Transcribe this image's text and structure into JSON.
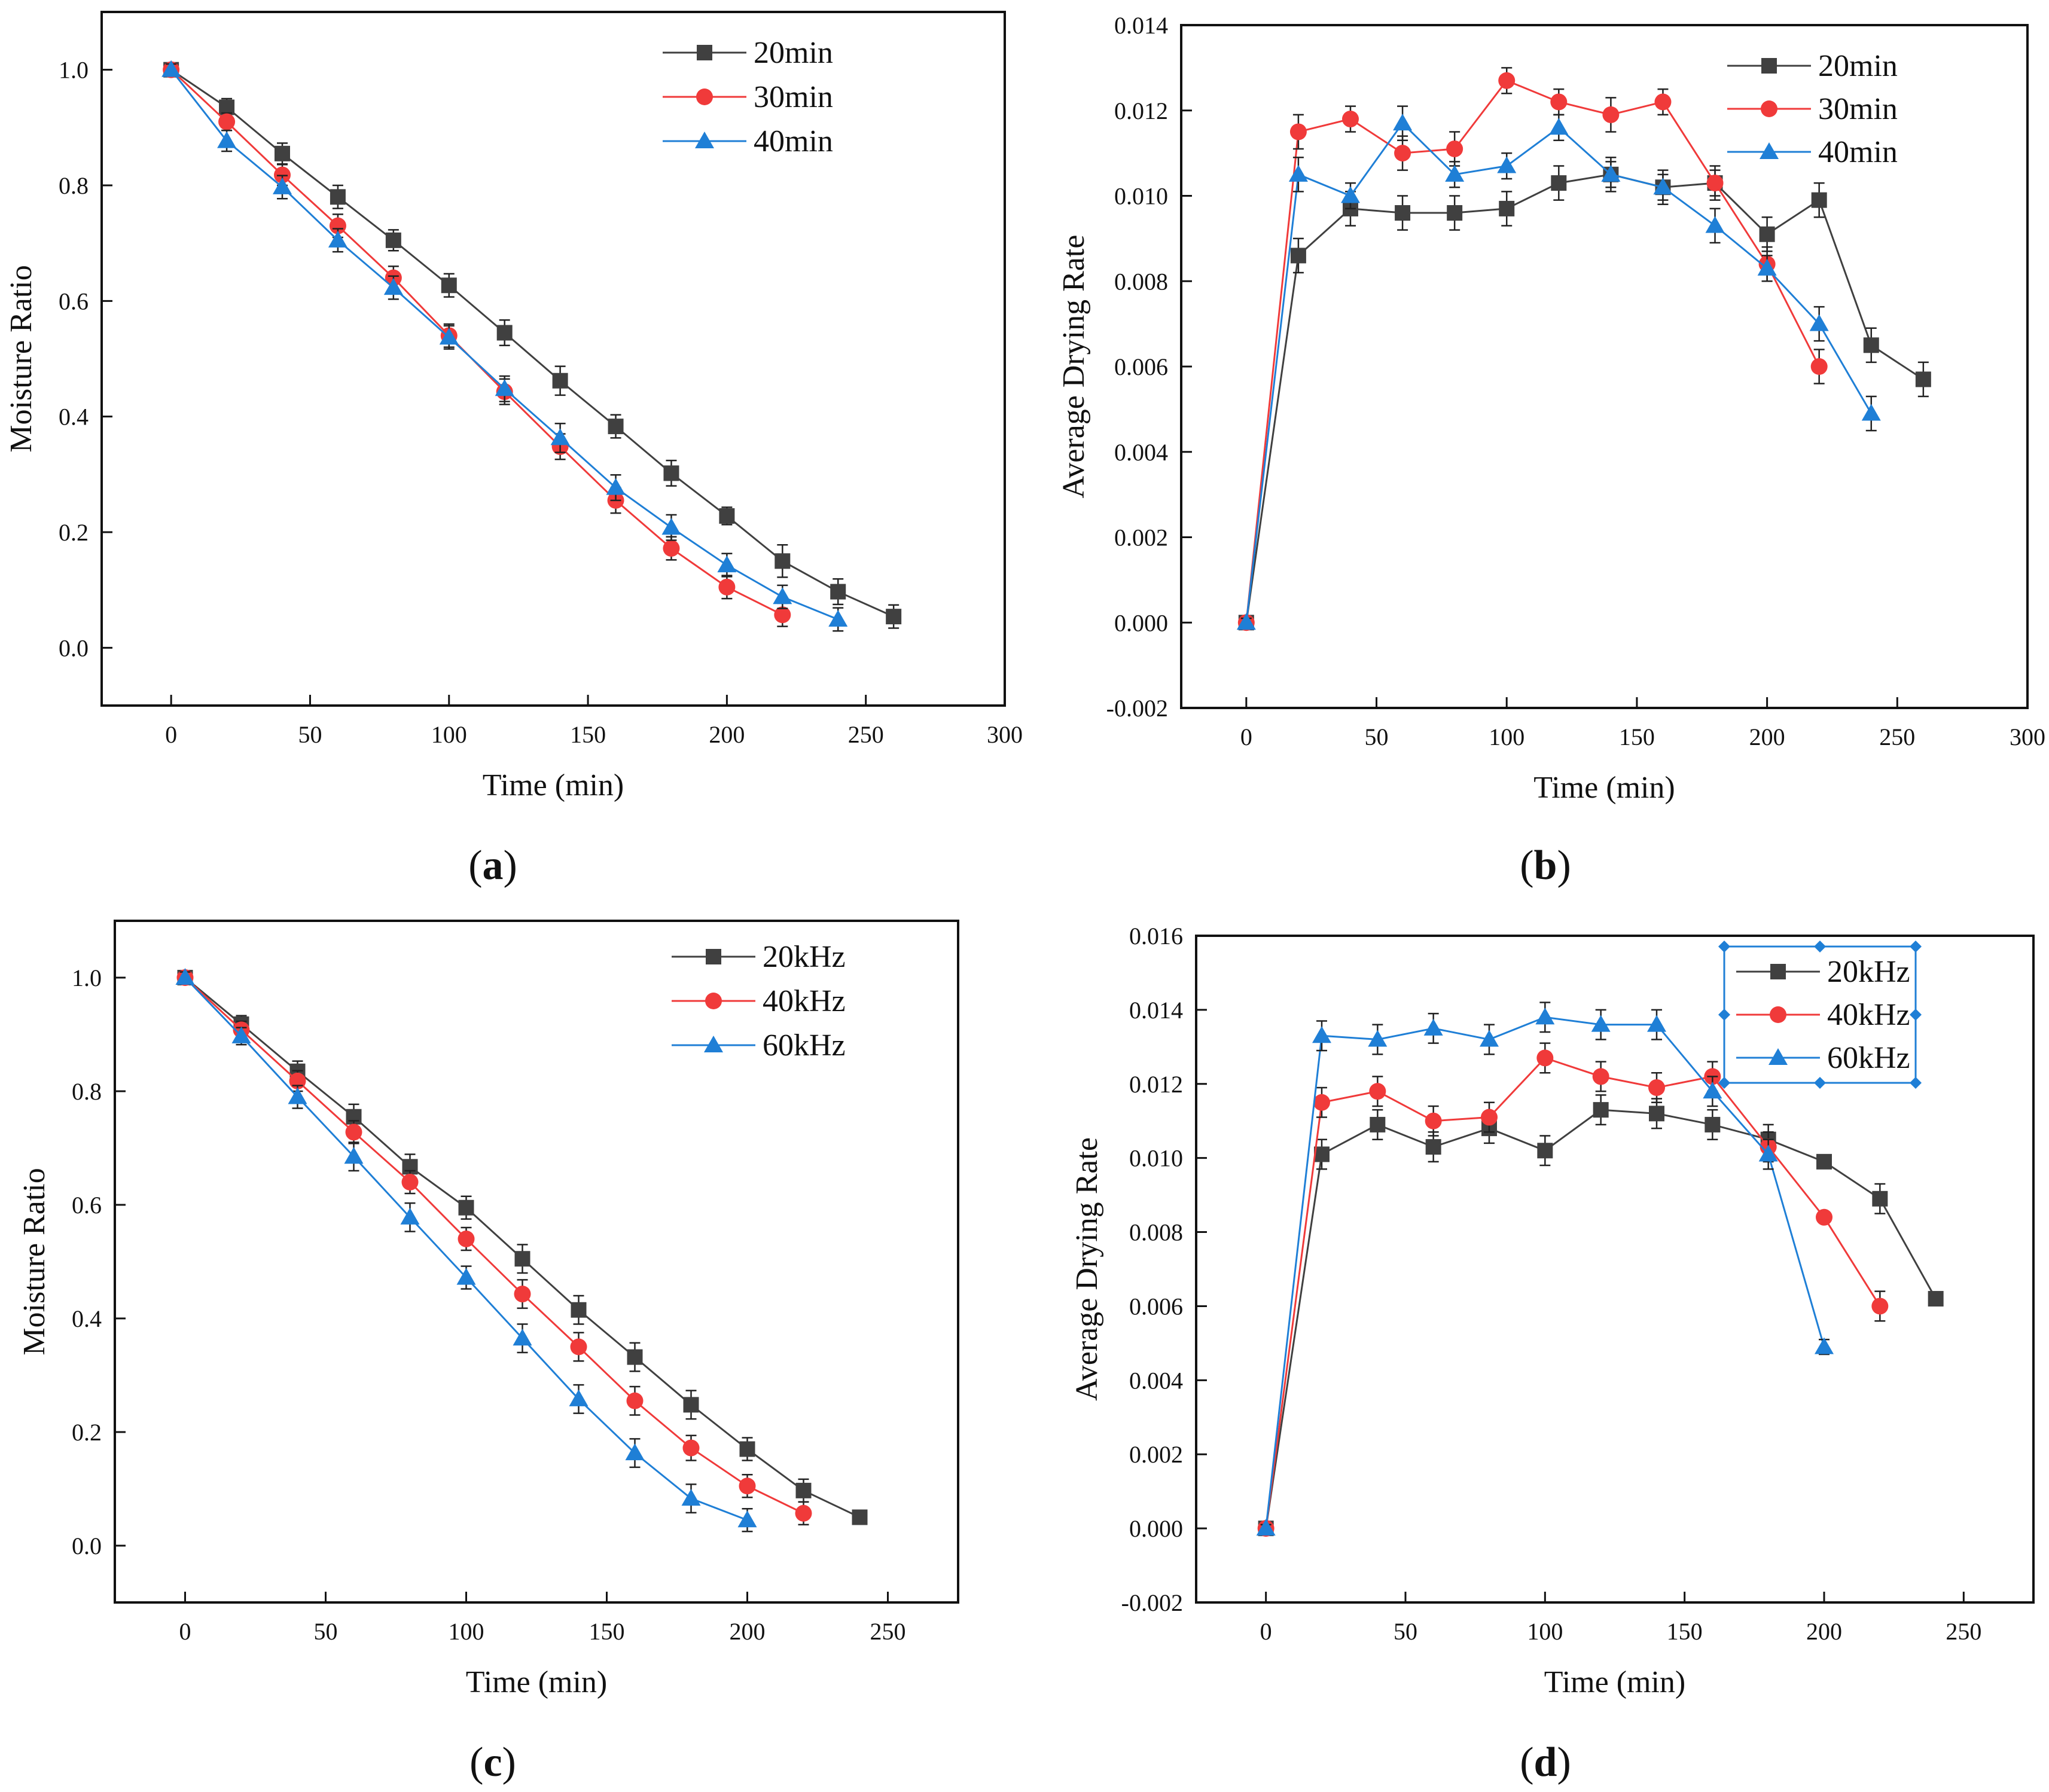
{
  "figure": {
    "panels": [
      {
        "id": "a",
        "label": "a"
      },
      {
        "id": "b",
        "label": "b"
      },
      {
        "id": "c",
        "label": "c"
      },
      {
        "id": "d",
        "label": "d"
      }
    ]
  },
  "colors": {
    "series1": "#404040",
    "series2": "#f03a3a",
    "series3": "#1f7fd6",
    "axis": "#111111"
  },
  "chart_data": [
    {
      "id": "a",
      "type": "line",
      "xlabel": "Time (min)",
      "ylabel": "Moisture Ratio",
      "xlim": [
        -25,
        300
      ],
      "ylim": [
        -0.1,
        1.1
      ],
      "xticks": [
        0,
        50,
        100,
        150,
        200,
        250,
        300
      ],
      "yticks": [
        0.0,
        0.2,
        0.4,
        0.6,
        0.8,
        1.0
      ],
      "ytick_labels": [
        "0.0",
        "0.2",
        "0.4",
        "0.6",
        "0.8",
        "1.0"
      ],
      "legend_position": "top-right",
      "series": [
        {
          "name": "20min",
          "marker": "square",
          "x": [
            0,
            20,
            40,
            60,
            80,
            100,
            120,
            140,
            160,
            180,
            200,
            220,
            240,
            260
          ],
          "y": [
            1.0,
            0.935,
            0.855,
            0.78,
            0.705,
            0.627,
            0.545,
            0.462,
            0.383,
            0.302,
            0.228,
            0.15,
            0.097,
            0.054
          ],
          "err": [
            0.01,
            0.015,
            0.018,
            0.02,
            0.018,
            0.02,
            0.022,
            0.025,
            0.02,
            0.022,
            0.015,
            0.028,
            0.022,
            0.02
          ]
        },
        {
          "name": "30min",
          "marker": "circle",
          "x": [
            0,
            20,
            40,
            60,
            80,
            100,
            120,
            140,
            160,
            180,
            200,
            220
          ],
          "y": [
            1.0,
            0.91,
            0.818,
            0.73,
            0.64,
            0.54,
            0.443,
            0.348,
            0.255,
            0.172,
            0.105,
            0.057
          ],
          "err": [
            0.01,
            0.015,
            0.018,
            0.02,
            0.02,
            0.02,
            0.022,
            0.022,
            0.022,
            0.02,
            0.02,
            0.02
          ]
        },
        {
          "name": "40min",
          "marker": "triangle",
          "x": [
            0,
            20,
            40,
            60,
            80,
            100,
            120,
            140,
            160,
            180,
            200,
            220,
            240
          ],
          "y": [
            1.0,
            0.877,
            0.797,
            0.705,
            0.623,
            0.537,
            0.448,
            0.363,
            0.277,
            0.208,
            0.143,
            0.088,
            0.049
          ],
          "err": [
            0.01,
            0.018,
            0.02,
            0.02,
            0.02,
            0.02,
            0.022,
            0.025,
            0.022,
            0.022,
            0.02,
            0.02,
            0.02
          ]
        }
      ]
    },
    {
      "id": "b",
      "type": "line",
      "xlabel": "Time (min)",
      "ylabel": "Average Drying Rate",
      "xlim": [
        -25,
        300
      ],
      "ylim": [
        -0.002,
        0.014
      ],
      "xticks": [
        0,
        50,
        100,
        150,
        200,
        250,
        300
      ],
      "yticks": [
        -0.002,
        0.0,
        0.002,
        0.004,
        0.006,
        0.008,
        0.01,
        0.012,
        0.014
      ],
      "ytick_labels": [
        "-0.002",
        "0.000",
        "0.002",
        "0.004",
        "0.006",
        "0.008",
        "0.010",
        "0.012",
        "0.014"
      ],
      "legend_position": "top-right",
      "series": [
        {
          "name": "20min",
          "marker": "square",
          "x": [
            0,
            20,
            40,
            60,
            80,
            100,
            120,
            140,
            160,
            180,
            200,
            220,
            240,
            260
          ],
          "y": [
            0.0,
            0.0086,
            0.0097,
            0.0096,
            0.0096,
            0.0097,
            0.0103,
            0.0105,
            0.0102,
            0.0103,
            0.0091,
            0.0099,
            0.0065,
            0.0057
          ],
          "err": [
            0.0001,
            0.0004,
            0.0004,
            0.0004,
            0.0004,
            0.0004,
            0.0004,
            0.0004,
            0.0004,
            0.0003,
            0.0004,
            0.0004,
            0.0004,
            0.0004
          ]
        },
        {
          "name": "30min",
          "marker": "circle",
          "x": [
            0,
            20,
            40,
            60,
            80,
            100,
            120,
            140,
            160,
            180,
            200,
            220
          ],
          "y": [
            0.0,
            0.0115,
            0.0118,
            0.011,
            0.0111,
            0.0127,
            0.0122,
            0.0119,
            0.0122,
            0.0103,
            0.0084,
            0.006
          ],
          "err": [
            0.0001,
            0.0004,
            0.0003,
            0.0004,
            0.0004,
            0.0003,
            0.0003,
            0.0004,
            0.0003,
            0.0004,
            0.0004,
            0.0004
          ]
        },
        {
          "name": "40min",
          "marker": "triangle",
          "x": [
            0,
            20,
            40,
            60,
            80,
            100,
            120,
            140,
            160,
            180,
            200,
            220,
            240
          ],
          "y": [
            0.0,
            0.0105,
            0.01,
            0.0117,
            0.0105,
            0.0107,
            0.0116,
            0.0105,
            0.0102,
            0.0093,
            0.0083,
            0.007,
            0.0049
          ],
          "err": [
            0.0001,
            0.0004,
            0.0003,
            0.0004,
            0.0003,
            0.0003,
            0.0003,
            0.0003,
            0.0003,
            0.0004,
            0.0003,
            0.0004,
            0.0004
          ]
        }
      ]
    },
    {
      "id": "c",
      "type": "line",
      "xlabel": "Time (min)",
      "ylabel": "Moisture Ratio",
      "xlim": [
        -25,
        275
      ],
      "ylim": [
        -0.1,
        1.1
      ],
      "xticks": [
        0,
        50,
        100,
        150,
        200,
        250
      ],
      "yticks": [
        0.0,
        0.2,
        0.4,
        0.6,
        0.8,
        1.0
      ],
      "ytick_labels": [
        "0.0",
        "0.2",
        "0.4",
        "0.6",
        "0.8",
        "1.0"
      ],
      "legend_position": "top-right",
      "series": [
        {
          "name": "20kHz",
          "marker": "square",
          "x": [
            0,
            20,
            40,
            60,
            80,
            100,
            120,
            140,
            160,
            180,
            200,
            220,
            240
          ],
          "y": [
            1.0,
            0.918,
            0.835,
            0.755,
            0.667,
            0.595,
            0.505,
            0.415,
            0.332,
            0.248,
            0.17,
            0.097,
            0.05
          ],
          "err": [
            0.01,
            0.015,
            0.018,
            0.022,
            0.022,
            0.02,
            0.025,
            0.025,
            0.025,
            0.025,
            0.02,
            0.02,
            0.01
          ]
        },
        {
          "name": "40kHz",
          "marker": "circle",
          "x": [
            0,
            20,
            40,
            60,
            80,
            100,
            120,
            140,
            160,
            180,
            200,
            220
          ],
          "y": [
            1.0,
            0.908,
            0.818,
            0.728,
            0.64,
            0.54,
            0.443,
            0.35,
            0.255,
            0.172,
            0.105,
            0.057
          ],
          "err": [
            0.01,
            0.015,
            0.018,
            0.02,
            0.02,
            0.02,
            0.025,
            0.025,
            0.025,
            0.022,
            0.02,
            0.02
          ]
        },
        {
          "name": "60kHz",
          "marker": "triangle",
          "x": [
            0,
            20,
            40,
            60,
            80,
            100,
            120,
            140,
            160,
            180,
            200
          ],
          "y": [
            1.0,
            0.897,
            0.79,
            0.685,
            0.578,
            0.472,
            0.365,
            0.258,
            0.163,
            0.083,
            0.045
          ],
          "err": [
            0.01,
            0.015,
            0.02,
            0.025,
            0.025,
            0.02,
            0.025,
            0.025,
            0.025,
            0.025,
            0.02
          ]
        }
      ]
    },
    {
      "id": "d",
      "type": "line",
      "xlabel": "Time (min)",
      "ylabel": "Average Drying Rate",
      "xlim": [
        -25,
        275
      ],
      "ylim": [
        -0.002,
        0.016
      ],
      "xticks": [
        0,
        50,
        100,
        150,
        200,
        250
      ],
      "yticks": [
        -0.002,
        0.0,
        0.002,
        0.004,
        0.006,
        0.008,
        0.01,
        0.012,
        0.014,
        0.016
      ],
      "ytick_labels": [
        "-0.002",
        "0.000",
        "0.002",
        "0.004",
        "0.006",
        "0.008",
        "0.010",
        "0.012",
        "0.014",
        "0.016"
      ],
      "legend_position": "top-right",
      "series": [
        {
          "name": "20kHz",
          "marker": "square",
          "x": [
            0,
            20,
            40,
            60,
            80,
            100,
            120,
            140,
            160,
            180,
            200,
            220,
            240
          ],
          "y": [
            0.0,
            0.0101,
            0.0109,
            0.0103,
            0.0108,
            0.0102,
            0.0113,
            0.0112,
            0.0109,
            0.0105,
            0.0099,
            0.0089,
            0.0062
          ],
          "err": [
            0.0001,
            0.0004,
            0.0004,
            0.0004,
            0.0004,
            0.0004,
            0.0004,
            0.0004,
            0.0004,
            0.0004,
            0.0001,
            0.0004,
            0.0001
          ]
        },
        {
          "name": "40kHz",
          "marker": "circle",
          "x": [
            0,
            20,
            40,
            60,
            80,
            100,
            120,
            140,
            160,
            180,
            200,
            220
          ],
          "y": [
            0.0,
            0.0115,
            0.0118,
            0.011,
            0.0111,
            0.0127,
            0.0122,
            0.0119,
            0.0122,
            0.0103,
            0.0084,
            0.006
          ],
          "err": [
            0.0001,
            0.0004,
            0.0004,
            0.0004,
            0.0004,
            0.0004,
            0.0004,
            0.0004,
            0.0004,
            0.0004,
            0.0001,
            0.0004
          ]
        },
        {
          "name": "60kHz",
          "marker": "triangle",
          "x": [
            0,
            20,
            40,
            60,
            80,
            100,
            120,
            140,
            160,
            180,
            200
          ],
          "y": [
            0.0,
            0.0133,
            0.0132,
            0.0135,
            0.0132,
            0.0138,
            0.0136,
            0.0136,
            0.0118,
            0.0101,
            0.0049
          ],
          "err": [
            0.0001,
            0.0004,
            0.0004,
            0.0004,
            0.0004,
            0.0004,
            0.0004,
            0.0004,
            0.0004,
            0.0004,
            0.0002
          ]
        }
      ]
    }
  ]
}
